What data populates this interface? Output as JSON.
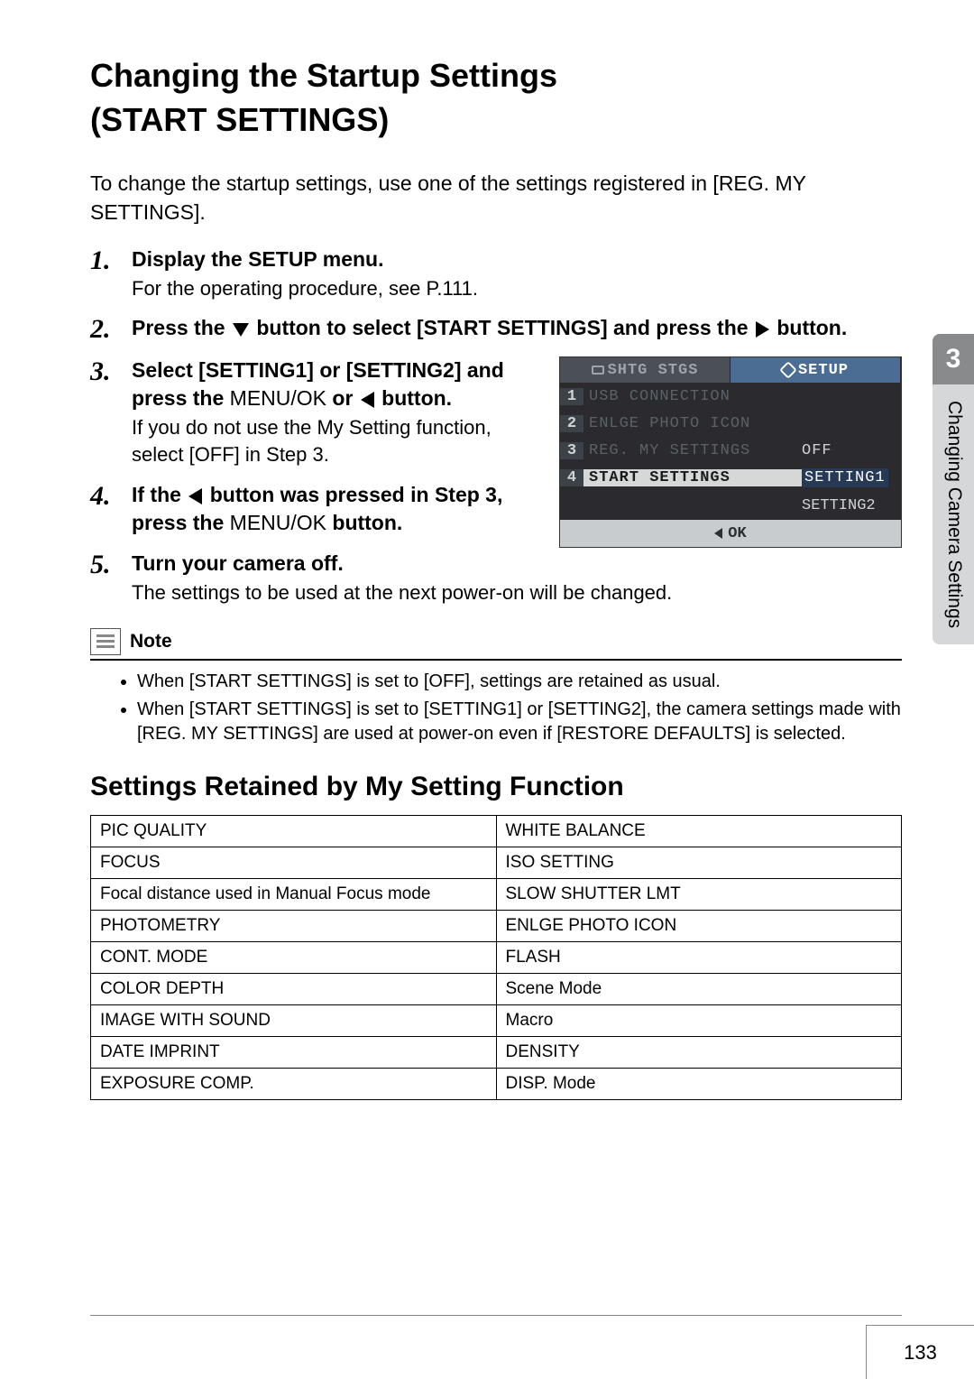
{
  "title_line1": "Changing the Startup Settings",
  "title_line2": "(START SETTINGS)",
  "intro": "To change the startup settings, use one of the settings registered in [REG. MY SETTINGS].",
  "steps": {
    "s1": {
      "num": "1.",
      "title": "Display the SETUP menu.",
      "desc": "For the operating procedure, see P.111."
    },
    "s2": {
      "num": "2.",
      "title_a": "Press the ",
      "title_b": " button to select [START SETTINGS] and press the ",
      "title_c": " button."
    },
    "s3": {
      "num": "3.",
      "title_a": "Select [SETTING1] or [SETTING2] and press the ",
      "menuok": "MENU/OK",
      "title_b": " or ",
      "title_c": " button.",
      "desc": "If you do not use the My Setting function, select [OFF] in Step 3."
    },
    "s4": {
      "num": "4.",
      "title_a": "If the ",
      "title_b": " button was pressed in Step 3, press the ",
      "menuok": "MENU/OK",
      "title_c": " button."
    },
    "s5": {
      "num": "5.",
      "title": "Turn your camera off.",
      "desc": "The settings to be used at the next power-on will be changed."
    }
  },
  "lcd": {
    "tab1": "SHTG STGS",
    "tab2": "SETUP",
    "rows": {
      "r1": {
        "n": "1",
        "label": "USB CONNECTION"
      },
      "r2": {
        "n": "2",
        "label": "ENLGE PHOTO ICON"
      },
      "r3": {
        "n": "3",
        "label": "REG. MY SETTINGS",
        "val": "OFF"
      },
      "r4": {
        "n": "4",
        "label": "START SETTINGS",
        "val": "SETTING1"
      }
    },
    "opt2": "SETTING2",
    "ok": "OK"
  },
  "note": {
    "label": "Note",
    "n1": "When [START SETTINGS] is set to [OFF], settings are retained as usual.",
    "n2": "When [START SETTINGS] is set to [SETTING1] or [SETTING2], the camera settings made with [REG. MY SETTINGS] are used at power-on even if [RESTORE DEFAULTS] is selected."
  },
  "sub_heading": "Settings Retained by My Setting Function",
  "table": {
    "r1c1": "PIC QUALITY",
    "r1c2": "WHITE BALANCE",
    "r2c1": "FOCUS",
    "r2c2": "ISO SETTING",
    "r3c1": "Focal distance used in Manual Focus mode",
    "r3c2": "SLOW SHUTTER LMT",
    "r4c1": "PHOTOMETRY",
    "r4c2": "ENLGE PHOTO ICON",
    "r5c1": "CONT. MODE",
    "r5c2": "FLASH",
    "r6c1": "COLOR DEPTH",
    "r6c2": "Scene Mode",
    "r7c1": "IMAGE WITH SOUND",
    "r7c2": "Macro",
    "r8c1": "DATE IMPRINT",
    "r8c2": "DENSITY",
    "r9c1": "EXPOSURE COMP.",
    "r9c2": "DISP. Mode"
  },
  "side": {
    "num": "3",
    "text": "Changing Camera Settings"
  },
  "page": "133"
}
